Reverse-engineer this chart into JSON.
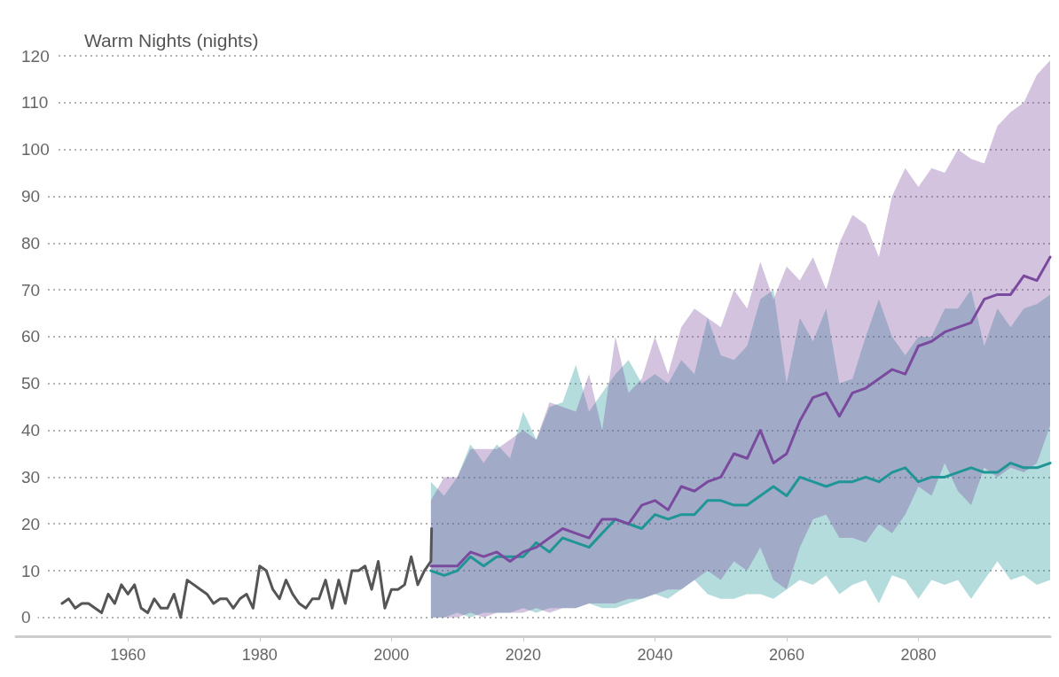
{
  "chart_data": {
    "type": "line",
    "ylabel": "Warm Nights (nights)",
    "xlim": [
      1943,
      2100
    ],
    "xticks": [
      1960,
      1980,
      2000,
      2020,
      2040,
      2060,
      2080
    ],
    "ylim": [
      -4,
      120
    ],
    "yticks": [
      0,
      10,
      20,
      30,
      40,
      50,
      60,
      70,
      80,
      90,
      100,
      110,
      120
    ],
    "grid": "y",
    "marker": "none",
    "series": [
      {
        "color": "#555555",
        "x": [
          1950,
          1951,
          1952,
          1953,
          1954,
          1955,
          1956,
          1957,
          1958,
          1959,
          1960,
          1961,
          1962,
          1963,
          1964,
          1965,
          1966,
          1967,
          1968,
          1969,
          1970,
          1971,
          1972,
          1973,
          1974,
          1975,
          1976,
          1977,
          1978,
          1979,
          1980,
          1981,
          1982,
          1983,
          1984,
          1985,
          1986,
          1987,
          1988,
          1989,
          1990,
          1991,
          1992,
          1993,
          1994,
          1995,
          1996,
          1997,
          1998,
          1999,
          2000,
          2001,
          2002,
          2003,
          2004,
          2005,
          2006,
          2006.1
        ],
        "values": [
          3,
          4,
          2,
          3,
          3,
          2,
          1,
          5,
          3,
          7,
          5,
          7,
          2,
          1,
          4,
          2,
          2,
          5,
          0,
          8,
          7,
          6,
          5,
          3,
          4,
          4,
          2,
          4,
          5,
          2,
          11,
          10,
          6,
          4,
          8,
          5,
          3,
          2,
          4,
          4,
          8,
          2,
          8,
          3,
          10,
          10,
          11,
          6,
          12,
          2,
          6,
          6,
          7,
          13,
          7,
          10,
          12,
          19
        ]
      },
      {
        "color": "#1f9595",
        "x": [
          2006,
          2008,
          2010,
          2012,
          2014,
          2016,
          2018,
          2020,
          2022,
          2024,
          2026,
          2028,
          2030,
          2032,
          2034,
          2036,
          2038,
          2040,
          2042,
          2044,
          2046,
          2048,
          2050,
          2052,
          2054,
          2056,
          2058,
          2060,
          2062,
          2064,
          2066,
          2068,
          2070,
          2072,
          2074,
          2076,
          2078,
          2080,
          2082,
          2084,
          2086,
          2088,
          2090,
          2092,
          2094,
          2096,
          2098,
          2100
        ],
        "values": [
          10,
          9,
          10,
          13,
          11,
          13,
          13,
          13,
          16,
          14,
          17,
          16,
          15,
          18,
          21,
          20,
          19,
          22,
          21,
          22,
          22,
          25,
          25,
          24,
          24,
          26,
          28,
          26,
          30,
          29,
          28,
          29,
          29,
          30,
          29,
          31,
          32,
          29,
          30,
          30,
          31,
          32,
          31,
          31,
          33,
          32,
          32,
          33
        ],
        "lower": [
          0,
          0,
          1,
          0,
          1,
          1,
          1,
          2,
          1,
          2,
          2,
          2,
          3,
          2,
          2,
          3,
          4,
          5,
          4,
          6,
          8,
          5,
          4,
          4,
          5,
          5,
          4,
          6,
          8,
          7,
          9,
          5,
          7,
          8,
          3,
          9,
          8,
          4,
          8,
          7,
          8,
          4,
          8,
          12,
          8,
          9,
          7,
          8
        ],
        "upper": [
          29,
          26,
          30,
          37,
          33,
          37,
          34,
          44,
          38,
          45,
          46,
          54,
          44,
          48,
          52,
          55,
          50,
          52,
          50,
          55,
          52,
          64,
          56,
          55,
          58,
          68,
          70,
          50,
          64,
          59,
          66,
          50,
          51,
          60,
          68,
          60,
          56,
          60,
          60,
          66,
          66,
          70,
          58,
          66,
          62,
          66,
          67,
          69
        ]
      },
      {
        "color": "#7a4a9e",
        "x": [
          2006,
          2008,
          2010,
          2012,
          2014,
          2016,
          2018,
          2020,
          2022,
          2024,
          2026,
          2028,
          2030,
          2032,
          2034,
          2036,
          2038,
          2040,
          2042,
          2044,
          2046,
          2048,
          2050,
          2052,
          2054,
          2056,
          2058,
          2060,
          2062,
          2064,
          2066,
          2068,
          2070,
          2072,
          2074,
          2076,
          2078,
          2080,
          2082,
          2084,
          2086,
          2088,
          2090,
          2092,
          2094,
          2096,
          2098,
          2100
        ],
        "values": [
          11,
          11,
          11,
          14,
          13,
          14,
          12,
          14,
          15,
          17,
          19,
          18,
          17,
          21,
          21,
          20,
          24,
          25,
          23,
          28,
          27,
          29,
          30,
          35,
          34,
          40,
          33,
          35,
          42,
          47,
          48,
          43,
          48,
          49,
          51,
          53,
          52,
          58,
          59,
          61,
          62,
          63,
          68,
          69,
          69,
          73,
          72,
          77
        ],
        "lower": [
          0,
          0,
          0,
          1,
          0,
          1,
          1,
          1,
          2,
          1,
          2,
          2,
          3,
          3,
          3,
          4,
          4,
          5,
          6,
          6,
          8,
          10,
          8,
          12,
          10,
          15,
          8,
          6,
          15,
          21,
          22,
          17,
          17,
          16,
          20,
          18,
          22,
          28,
          26,
          33,
          27,
          24,
          32,
          30,
          32,
          31,
          33,
          41
        ],
        "upper": [
          25,
          30,
          30,
          36,
          36,
          36,
          38,
          40,
          38,
          46,
          45,
          44,
          52,
          40,
          60,
          48,
          51,
          60,
          52,
          62,
          66,
          64,
          62,
          70,
          66,
          76,
          68,
          75,
          72,
          77,
          70,
          80,
          86,
          84,
          77,
          90,
          96,
          92,
          96,
          95,
          100,
          98,
          97,
          105,
          108,
          110,
          116,
          119
        ]
      }
    ]
  }
}
